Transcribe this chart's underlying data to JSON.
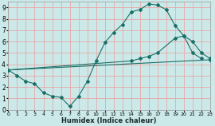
{
  "xlabel": "Humidex (Indice chaleur)",
  "background_color": "#cce9e9",
  "grid_color": "#e8a8a8",
  "line_color": "#1a7068",
  "xlim": [
    0,
    23
  ],
  "ylim": [
    0,
    9.5
  ],
  "ytick_vals": [
    0,
    1,
    2,
    3,
    4,
    5,
    6,
    7,
    8,
    9
  ],
  "xtick_vals": [
    0,
    1,
    2,
    3,
    4,
    5,
    6,
    7,
    8,
    9,
    10,
    11,
    12,
    13,
    14,
    15,
    16,
    17,
    18,
    19,
    20,
    21,
    22,
    23
  ],
  "curve1_x": [
    0,
    1,
    2,
    3,
    4,
    5,
    6,
    7,
    8,
    9,
    10,
    11,
    12,
    13,
    14,
    15,
    16,
    17,
    18,
    19,
    20,
    21,
    22
  ],
  "curve1_y": [
    3.5,
    3.0,
    2.5,
    2.3,
    1.5,
    1.2,
    1.1,
    0.3,
    1.2,
    2.5,
    4.3,
    5.9,
    6.8,
    7.5,
    8.6,
    8.8,
    9.3,
    9.2,
    8.8,
    7.4,
    6.5,
    5.0,
    4.5
  ],
  "curve2_x": [
    0,
    14,
    15,
    16,
    17,
    19,
    20,
    21,
    22,
    23
  ],
  "curve2_y": [
    3.5,
    4.3,
    4.5,
    4.7,
    5.0,
    6.3,
    6.5,
    6.0,
    5.0,
    4.5
  ],
  "curve3_x": [
    0,
    23
  ],
  "curve3_y": [
    3.5,
    4.4
  ]
}
